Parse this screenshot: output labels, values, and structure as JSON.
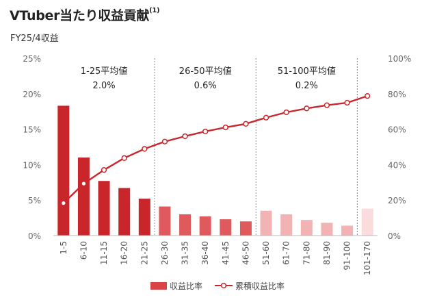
{
  "header": {
    "title": "VTuber当たり収益貢献",
    "title_note": "(1)",
    "subtitle": "FY25/4収益"
  },
  "chart_data": {
    "type": "bar",
    "categories": [
      "1-5",
      "6-10",
      "11-15",
      "16-20",
      "21-25",
      "26-30",
      "31-35",
      "36-40",
      "41-45",
      "46-50",
      "51-60",
      "61-70",
      "71-80",
      "81-90",
      "91-100",
      "101-170"
    ],
    "series": [
      {
        "name": "収益比率",
        "type": "bar",
        "axis": "left",
        "values": [
          18.3,
          11.0,
          7.7,
          6.7,
          5.2,
          4.1,
          3.0,
          2.7,
          2.3,
          2.0,
          3.5,
          3.0,
          2.2,
          1.8,
          1.4,
          3.8
        ]
      },
      {
        "name": "累積収益比率",
        "type": "line",
        "axis": "right",
        "values": [
          18.3,
          29.3,
          37.0,
          43.7,
          48.9,
          53.0,
          56.0,
          58.7,
          61.0,
          63.0,
          66.5,
          69.5,
          71.7,
          73.5,
          74.9,
          78.7
        ]
      }
    ],
    "y_left": {
      "ticks": [
        "0%",
        "5%",
        "10%",
        "15%",
        "20%",
        "25%"
      ],
      "min": 0,
      "max": 25
    },
    "y_right": {
      "ticks": [
        "0%",
        "20%",
        "40%",
        "60%",
        "80%",
        "100%"
      ],
      "min": 0,
      "max": 100
    },
    "groups": [
      {
        "label": "1-25平均値",
        "value": "2.0%",
        "from": 0,
        "to": 4
      },
      {
        "label": "26-50平均値",
        "value": "0.6%",
        "from": 5,
        "to": 9
      },
      {
        "label": "51-100平均値",
        "value": "0.2%",
        "from": 10,
        "to": 14
      }
    ],
    "bar_colors": [
      "#c9262c",
      "#c9262c",
      "#c9262c",
      "#c9262c",
      "#c9262c",
      "#e05a5d",
      "#e05a5d",
      "#e05a5d",
      "#e05a5d",
      "#e05a5d",
      "#f2b3b4",
      "#f2b3b4",
      "#f2b3b4",
      "#f2b3b4",
      "#f2b3b4",
      "#fbdcdd"
    ],
    "line_color": "#c9262c",
    "legend": {
      "bar_label": "収益比率",
      "line_label": "累積収益比率",
      "position": "bottom"
    },
    "grid": false
  }
}
